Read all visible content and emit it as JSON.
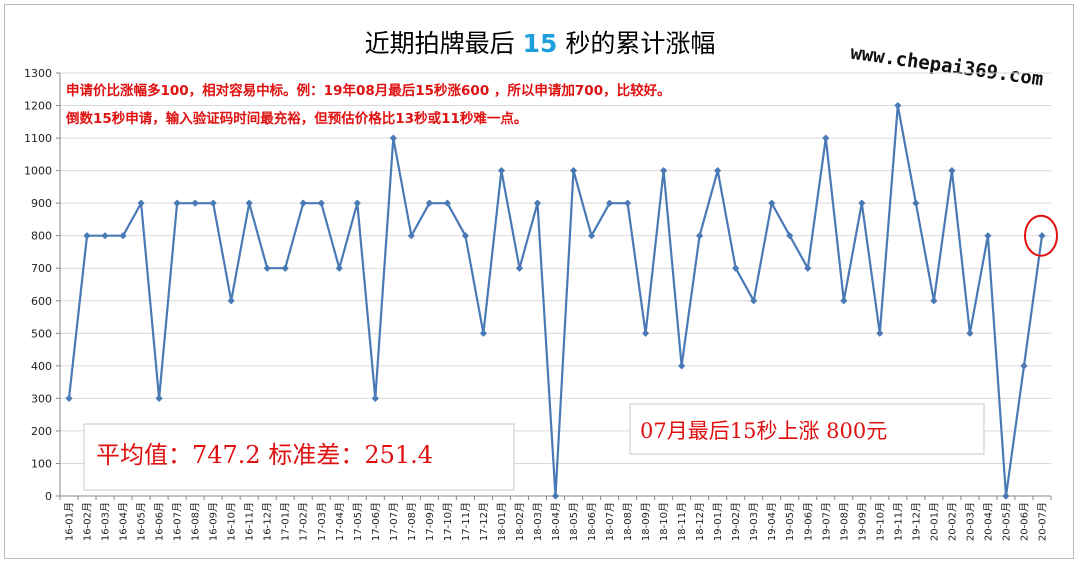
{
  "chart_data": {
    "type": "line",
    "title_before": "近期拍牌最后 ",
    "title_accent": "15",
    "title_after": " 秒的累计涨幅",
    "watermark": "www.chepai369.com",
    "annotation_line1": "申请价比涨幅多100，相对容易中标。例：19年08月最后15秒涨600 ，所以申请加700，比较好。",
    "annotation_line2": "倒数15秒申请，输入验证码时间最充裕，但预估价格比13秒或11秒难一点。",
    "stats_label": "平均值：747.2 标准差：251.4",
    "callout_label": "07月最后15秒上涨 800元",
    "ylim": [
      0,
      1300
    ],
    "yticks": [
      0,
      100,
      200,
      300,
      400,
      500,
      600,
      700,
      800,
      900,
      1000,
      1100,
      1200,
      1300
    ],
    "categories": [
      "16-01月",
      "16-02月",
      "16-03月",
      "16-04月",
      "16-05月",
      "16-06月",
      "16-07月",
      "16-08月",
      "16-09月",
      "16-10月",
      "16-11月",
      "16-12月",
      "17-01月",
      "17-02月",
      "17-03月",
      "17-04月",
      "17-05月",
      "17-06月",
      "17-07月",
      "17-08月",
      "17-09月",
      "17-10月",
      "17-11月",
      "17-12月",
      "18-01月",
      "18-02月",
      "18-03月",
      "18-04月",
      "18-05月",
      "18-06月",
      "18-07月",
      "18-08月",
      "18-09月",
      "18-10月",
      "18-11月",
      "18-12月",
      "19-01月",
      "19-02月",
      "19-03月",
      "19-04月",
      "19-05月",
      "19-06月",
      "19-07月",
      "19-08月",
      "19-09月",
      "19-10月",
      "19-11月",
      "19-12月",
      "20-01月",
      "20-02月",
      "20-03月",
      "20-04月",
      "20-05月",
      "20-06月",
      "20-07月"
    ],
    "values": [
      300,
      800,
      800,
      800,
      900,
      300,
      900,
      900,
      900,
      600,
      900,
      700,
      700,
      900,
      900,
      700,
      900,
      300,
      1100,
      800,
      900,
      900,
      800,
      500,
      1000,
      700,
      900,
      0,
      1000,
      800,
      900,
      900,
      500,
      1000,
      400,
      800,
      1000,
      700,
      600,
      900,
      800,
      700,
      1100,
      600,
      900,
      500,
      1200,
      900,
      600,
      1000,
      500,
      800,
      0,
      400,
      800
    ],
    "series_color": "#4a7ab5",
    "highlight_color": "#e01010",
    "highlight_index": 54
  }
}
